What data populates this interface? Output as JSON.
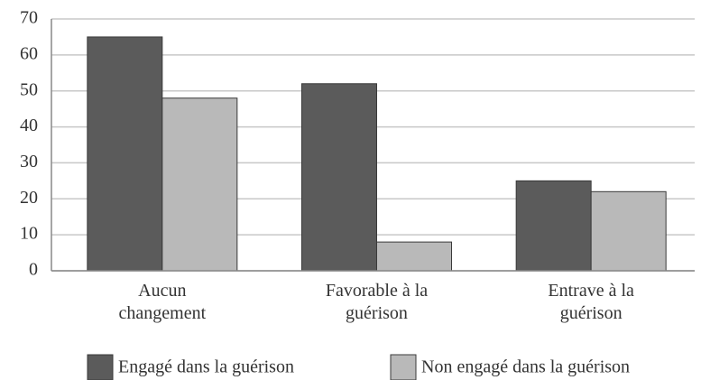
{
  "chart_data": {
    "type": "bar",
    "categories": [
      "Aucun changement",
      "Favorable à la guérison",
      "Entrave à la guérison"
    ],
    "series": [
      {
        "name": "Engagé dans la guérison",
        "color": "#5b5b5b",
        "values": [
          65,
          52,
          25
        ]
      },
      {
        "name": "Non engagé dans  la guérison",
        "color": "#b9b9b9",
        "values": [
          48,
          8,
          22
        ]
      }
    ],
    "ylim": [
      0,
      70
    ],
    "yticks": [
      0,
      10,
      20,
      30,
      40,
      50,
      60,
      70
    ],
    "grid": true,
    "legend": "bottom"
  }
}
